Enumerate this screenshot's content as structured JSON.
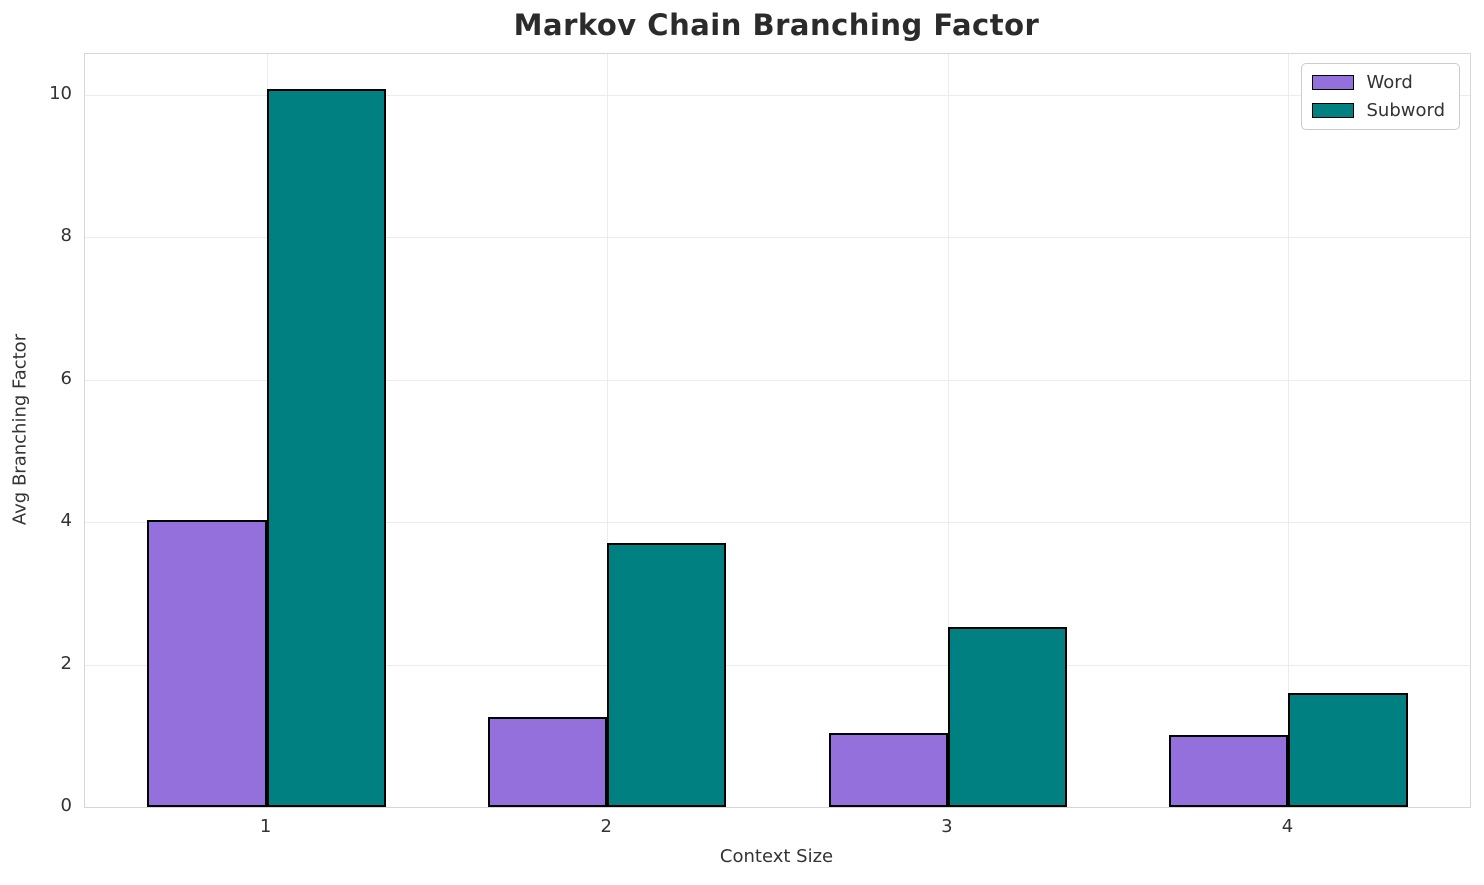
{
  "figure": {
    "title": "Markov Chain Branching Factor"
  },
  "chart_data": {
    "type": "bar",
    "title": "Markov Chain Branching Factor",
    "xlabel": "Context Size",
    "ylabel": "Avg Branching Factor",
    "categories": [
      "1",
      "2",
      "3",
      "4"
    ],
    "series": [
      {
        "name": "Word",
        "color": "#9370DB",
        "values": [
          4.03,
          1.26,
          1.04,
          1.01
        ]
      },
      {
        "name": "Subword",
        "color": "#008080",
        "values": [
          10.08,
          3.71,
          2.53,
          1.6
        ]
      }
    ],
    "yticks": [
      0,
      2,
      4,
      6,
      8,
      10
    ],
    "ylim": [
      0,
      10.57
    ],
    "xlim": [
      0.467,
      4.533
    ],
    "bar_width": 0.35,
    "bar_edge_color": "#000000",
    "grid": true,
    "grid_color": "#ececec",
    "legend_position": "upper right",
    "legend_labels": [
      "Word",
      "Subword"
    ]
  }
}
